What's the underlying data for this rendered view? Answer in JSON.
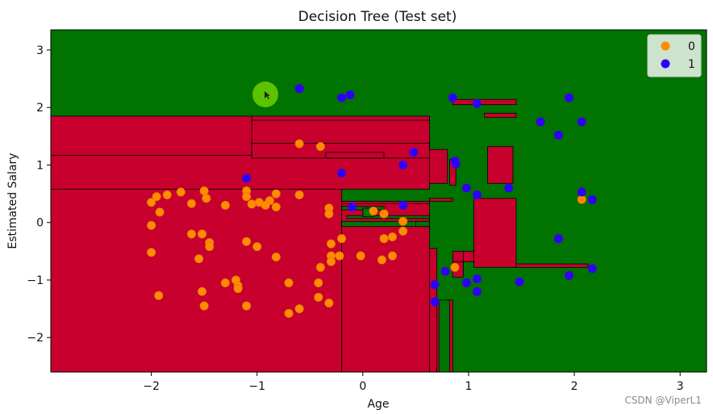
{
  "chart_data": {
    "type": "scatter",
    "title": "Decision Tree (Test set)",
    "xlabel": "Age",
    "ylabel": "Estimated Salary",
    "xlim": [
      -2.95,
      3.25
    ],
    "ylim": [
      -2.6,
      3.35
    ],
    "xticks": [
      -2,
      -1,
      0,
      1,
      2,
      3
    ],
    "yticks": [
      -2,
      -1,
      0,
      1,
      2,
      3
    ],
    "grid": false,
    "legend_position": "top-right",
    "colors": {
      "class_0_region": "#c8002e",
      "class_1_region": "#007300",
      "class_0_point": "#ff8c00",
      "class_1_point": "#2a00ff",
      "cursor_highlight": "#66cc00"
    },
    "series": [
      {
        "name": "0",
        "color": "#ff8c00",
        "points": [
          [
            -2.0,
            0.35
          ],
          [
            -1.95,
            0.45
          ],
          [
            -1.85,
            0.48
          ],
          [
            -1.72,
            0.53
          ],
          [
            -1.5,
            0.55
          ],
          [
            -1.48,
            0.42
          ],
          [
            -1.3,
            0.3
          ],
          [
            -1.1,
            0.55
          ],
          [
            -1.1,
            0.45
          ],
          [
            -0.98,
            0.35
          ],
          [
            -0.88,
            0.38
          ],
          [
            -0.82,
            0.5
          ],
          [
            -0.6,
            0.48
          ],
          [
            -1.62,
            0.33
          ],
          [
            -1.05,
            0.32
          ],
          [
            -0.92,
            0.3
          ],
          [
            -0.82,
            0.27
          ],
          [
            -2.0,
            -0.05
          ],
          [
            -1.92,
            0.18
          ],
          [
            -1.62,
            -0.2
          ],
          [
            -1.52,
            -0.2
          ],
          [
            -1.45,
            -0.35
          ],
          [
            -1.45,
            -0.42
          ],
          [
            -1.1,
            -0.33
          ],
          [
            -1.0,
            -0.42
          ],
          [
            -0.82,
            -0.6
          ],
          [
            -1.55,
            -0.63
          ],
          [
            -2.0,
            -0.52
          ],
          [
            -0.32,
            0.25
          ],
          [
            -0.32,
            0.15
          ],
          [
            -0.3,
            -0.37
          ],
          [
            -0.3,
            -0.58
          ],
          [
            -0.3,
            -0.68
          ],
          [
            -0.4,
            -0.78
          ],
          [
            -0.2,
            -0.28
          ],
          [
            -0.22,
            -0.58
          ],
          [
            -0.02,
            -0.58
          ],
          [
            0.1,
            0.2
          ],
          [
            0.2,
            0.15
          ],
          [
            0.2,
            -0.28
          ],
          [
            0.28,
            -0.25
          ],
          [
            0.38,
            -0.15
          ],
          [
            0.18,
            -0.65
          ],
          [
            0.28,
            -0.58
          ],
          [
            0.38,
            0.02
          ],
          [
            0.87,
            -0.78
          ],
          [
            -1.3,
            -1.05
          ],
          [
            -1.2,
            -1.0
          ],
          [
            -1.18,
            -1.1
          ],
          [
            -1.18,
            -1.15
          ],
          [
            -1.52,
            -1.2
          ],
          [
            -1.5,
            -1.45
          ],
          [
            -1.1,
            -1.45
          ],
          [
            -0.7,
            -1.05
          ],
          [
            -0.42,
            -1.05
          ],
          [
            -0.42,
            -1.3
          ],
          [
            -0.32,
            -1.4
          ],
          [
            -0.6,
            -1.5
          ],
          [
            -0.7,
            -1.58
          ],
          [
            -1.93,
            -1.27
          ],
          [
            -0.6,
            1.37
          ],
          [
            -0.4,
            1.32
          ],
          [
            2.07,
            0.4
          ]
        ]
      },
      {
        "name": "1",
        "color": "#2a00ff",
        "points": [
          [
            -0.6,
            2.33
          ],
          [
            -0.2,
            2.17
          ],
          [
            -0.12,
            2.22
          ],
          [
            0.85,
            2.17
          ],
          [
            1.08,
            2.07
          ],
          [
            1.95,
            2.17
          ],
          [
            2.07,
            1.75
          ],
          [
            1.68,
            1.75
          ],
          [
            1.85,
            1.52
          ],
          [
            0.48,
            1.22
          ],
          [
            0.38,
            1.0
          ],
          [
            0.87,
            1.07
          ],
          [
            0.88,
            1.02
          ],
          [
            -0.2,
            0.86
          ],
          [
            0.98,
            0.6
          ],
          [
            1.08,
            0.48
          ],
          [
            1.38,
            0.6
          ],
          [
            2.07,
            0.53
          ],
          [
            2.17,
            0.4
          ],
          [
            -1.1,
            0.77
          ],
          [
            -0.1,
            0.27
          ],
          [
            0.38,
            0.3
          ],
          [
            0.78,
            -0.85
          ],
          [
            1.85,
            -0.28
          ],
          [
            1.95,
            -0.92
          ],
          [
            2.17,
            -0.8
          ],
          [
            0.98,
            -1.05
          ],
          [
            1.08,
            -0.98
          ],
          [
            1.08,
            -1.2
          ],
          [
            1.48,
            -1.03
          ],
          [
            0.68,
            -1.08
          ],
          [
            0.68,
            -1.38
          ]
        ]
      }
    ]
  },
  "watermark": "CSDN @ViperL1"
}
